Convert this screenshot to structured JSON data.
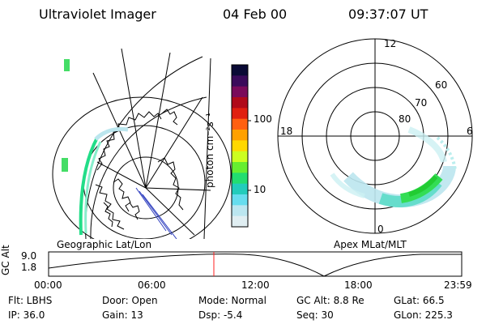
{
  "header": {
    "instrument": "Ultraviolet Imager",
    "date": "04 Feb 00",
    "time": "09:37:07 UT"
  },
  "left_panel": {
    "caption": "Geographic Lat/Lon"
  },
  "right_panel": {
    "caption": "Apex MLat/MLT",
    "mlt_labels": [
      "12",
      "18",
      "6",
      "0"
    ],
    "lat_labels": [
      "80",
      "70",
      "60"
    ]
  },
  "colorbar": {
    "label": "photon cm⁻²s⁻¹",
    "ticks": [
      "100",
      "10"
    ],
    "colors": [
      "#0a0a35",
      "#3a0a5a",
      "#7a0a5a",
      "#b00a1a",
      "#e02010",
      "#ff6010",
      "#ffa000",
      "#ffd800",
      "#ccff20",
      "#66ee30",
      "#22dd70",
      "#22ccbb",
      "#66ddee",
      "#bbe6f0",
      "#e0eef2"
    ]
  },
  "timeline": {
    "y_label": "GC Alt",
    "y_ticks": [
      "9.0",
      "1.8"
    ],
    "x_ticks": [
      "00:00",
      "06:00",
      "12:00",
      "18:00",
      "23:59"
    ],
    "marker_time": "09:37",
    "marker_color": "#ff2020"
  },
  "info": {
    "row1": {
      "filter": "Flt: LBHS",
      "door": "Door: Open",
      "mode": "Mode: Normal",
      "gc_alt": "GC Alt: 8.8 Re",
      "glat": "GLat:  66.5"
    },
    "row2": {
      "ip": "IP: 36.0",
      "gain": "Gain: 13",
      "dsp": "Dsp:    -5.4",
      "seq": "Seq: 30",
      "glon": "GLon: 225.3"
    }
  }
}
